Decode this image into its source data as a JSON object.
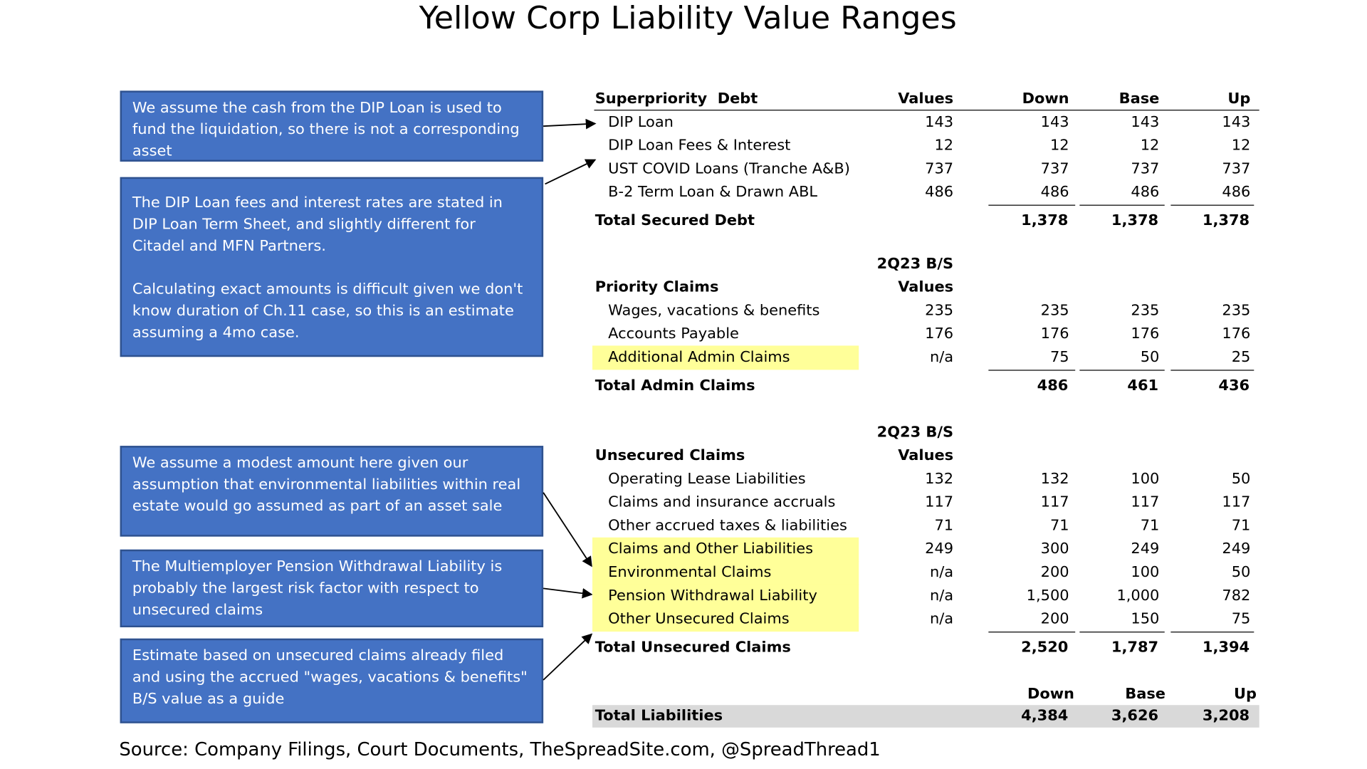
{
  "title": "Yellow Corp Liability Value Ranges",
  "notes": [
    [
      "We assume the cash from the DIP Loan is used to fund the liquidation, so there is not a corresponding asset"
    ],
    [
      "The DIP Loan fees and interest rates are stated in DIP Loan Term Sheet, and slightly different for Citadel and MFN Partners.",
      "Calculating exact amounts is difficult given we don't know duration of Ch.11 case, so this is an estimate assuming a 4mo case."
    ],
    [
      "We assume a modest amount here given our assumption that environmental liabilities within real estate would go assumed as part of an asset sale"
    ],
    [
      "The Multiemployer Pension Withdrawal Liability is probably the largest risk factor with respect to unsecured claims"
    ],
    [
      "Estimate based on unsecured claims already filed and using the accrued \"wages, vacations & benefits\" B/S value as a guide"
    ]
  ],
  "sections": [
    {
      "header": "Superpriority  Debt",
      "header_rule": true,
      "columns": [
        "Values",
        "Down",
        "Base",
        "Up"
      ],
      "rows": [
        {
          "label": "DIP Loan",
          "values": "143",
          "down": "143",
          "base": "143",
          "up": "143"
        },
        {
          "label": "DIP Loan Fees & Interest",
          "values": "12",
          "down": "12",
          "base": "12",
          "up": "12"
        },
        {
          "label": "UST COVID Loans (Tranche A&B)",
          "values": "737",
          "down": "737",
          "base": "737",
          "up": "737"
        },
        {
          "label": "B-2 Term Loan & Drawn ABL",
          "values": "486",
          "down": "486",
          "base": "486",
          "up": "486"
        }
      ],
      "total": {
        "label": "Total Secured Debt",
        "down": "1,378",
        "base": "1,378",
        "up": "1,378"
      }
    },
    {
      "subheader": "2Q23 B/S",
      "header": "Priority Claims",
      "header_rule": false,
      "columns": [
        "Values"
      ],
      "rows": [
        {
          "label": "Wages, vacations & benefits",
          "values": "235",
          "down": "235",
          "base": "235",
          "up": "235"
        },
        {
          "label": "Accounts Payable",
          "values": "176",
          "down": "176",
          "base": "176",
          "up": "176"
        },
        {
          "label": "Additional Admin Claims",
          "values": "n/a",
          "down": "75",
          "base": "50",
          "up": "25",
          "highlight": true
        }
      ],
      "total": {
        "label": "Total Admin Claims",
        "down": "486",
        "base": "461",
        "up": "436"
      }
    },
    {
      "subheader": "2Q23 B/S",
      "header": "Unsecured Claims",
      "header_rule": false,
      "columns": [
        "Values"
      ],
      "rows": [
        {
          "label": "Operating Lease Liabilities",
          "values": "132",
          "down": "132",
          "base": "100",
          "up": "50"
        },
        {
          "label": "Claims and insurance accruals",
          "values": "117",
          "down": "117",
          "base": "117",
          "up": "117"
        },
        {
          "label": "Other accrued taxes & liabilities",
          "values": "71",
          "down": "71",
          "base": "71",
          "up": "71"
        },
        {
          "label": "Claims and Other Liabilities",
          "values": "249",
          "down": "300",
          "base": "249",
          "up": "249",
          "highlight": true
        },
        {
          "label": "Environmental Claims",
          "values": "n/a",
          "down": "200",
          "base": "100",
          "up": "50",
          "highlight": true
        },
        {
          "label": "Pension Withdrawal Liability",
          "values": "n/a",
          "down": "1,500",
          "base": "1,000",
          "up": "782",
          "highlight": true
        },
        {
          "label": "Other Unsecured Claims",
          "values": "n/a",
          "down": "200",
          "base": "150",
          "up": "75",
          "highlight": true
        }
      ],
      "total": {
        "label": "Total Unsecured Claims",
        "down": "2,520",
        "base": "1,787",
        "up": "1,394"
      }
    }
  ],
  "grand_total": {
    "columns": [
      "Down",
      "Base",
      "Up"
    ],
    "label": "Total Liabilities",
    "down": "4,384",
    "base": "3,626",
    "up": "3,208"
  },
  "source": "Source: Company Filings, Court Documents, TheSpreadSite.com, @SpreadThread1"
}
